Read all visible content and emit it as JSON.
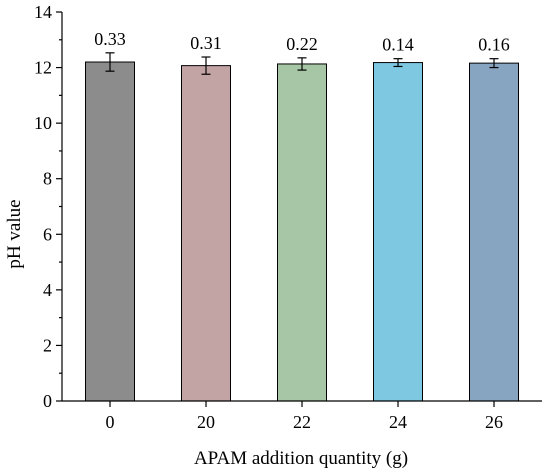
{
  "chart_data": {
    "type": "bar",
    "categories": [
      "0",
      "20",
      "22",
      "24",
      "26"
    ],
    "values": [
      12.2,
      12.07,
      12.13,
      12.18,
      12.16
    ],
    "errors": [
      0.33,
      0.31,
      0.22,
      0.14,
      0.16
    ],
    "data_labels": [
      "0.33",
      "0.31",
      "0.22",
      "0.14",
      "0.16"
    ],
    "bar_colors": [
      "#8c8c8c",
      "#c3a4a5",
      "#a6c6a6",
      "#7ec8e1",
      "#87a4c0"
    ],
    "xlabel": "APAM addition quantity (g)",
    "ylabel": "pH value",
    "ylim": [
      0,
      14
    ],
    "yticks": [
      "0",
      "2",
      "4",
      "6",
      "8",
      "10",
      "12",
      "14"
    ],
    "grid": false,
    "legend": "none"
  }
}
